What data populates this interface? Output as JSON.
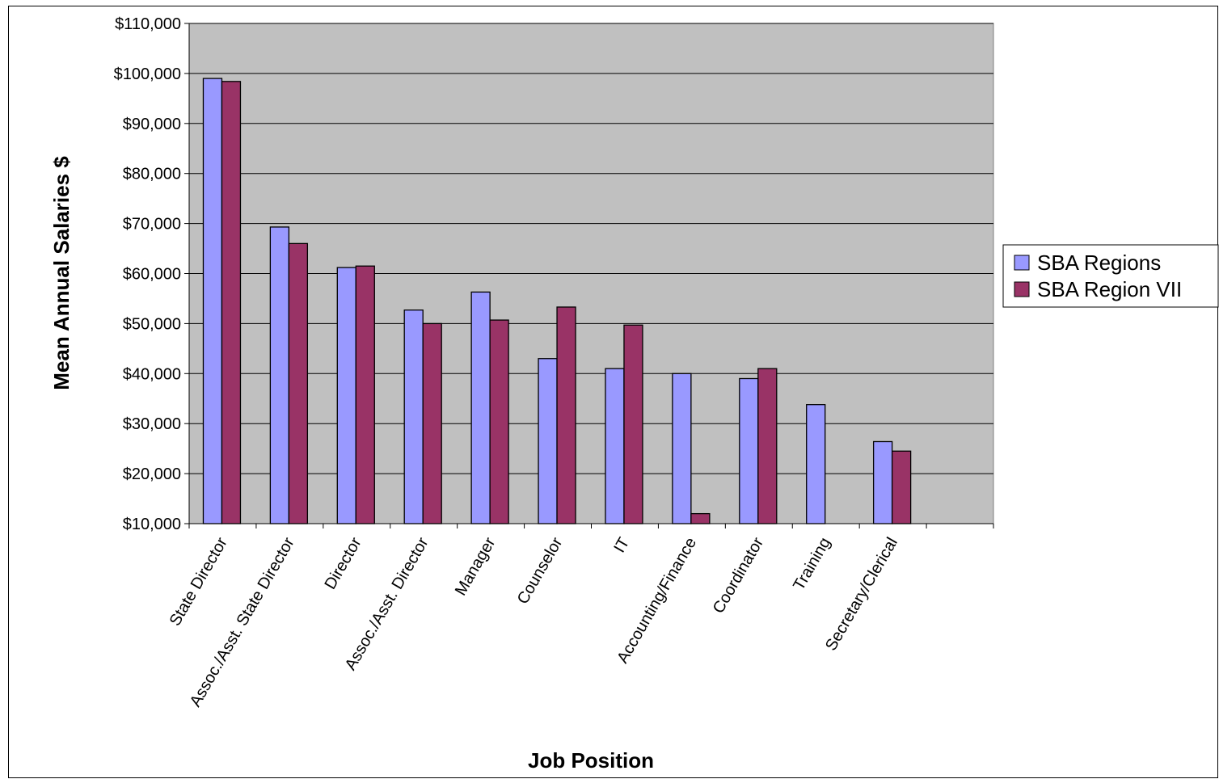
{
  "chart_data": {
    "type": "bar",
    "title": "",
    "xlabel": "Job Position",
    "ylabel": "Mean Annual Salaries $",
    "ylim": [
      10000,
      110000
    ],
    "ytick_step": 10000,
    "ytick_labels": [
      "$10,000",
      "$20,000",
      "$30,000",
      "$40,000",
      "$50,000",
      "$60,000",
      "$70,000",
      "$80,000",
      "$90,000",
      "$100,000",
      "$110,000"
    ],
    "categories": [
      "State Director",
      "Assoc./Asst. State Director",
      "Director",
      "Assoc./Asst. Director",
      "Manager",
      "Counselor",
      "IT",
      "Accounting/Finance",
      "Coordinator",
      "Training",
      "Secretary/Clerical",
      ""
    ],
    "series": [
      {
        "name": "SBA Regions",
        "color": "#9999ff",
        "values": [
          99000,
          69300,
          61200,
          52700,
          56300,
          43000,
          41000,
          40000,
          39000,
          33800,
          26400,
          null
        ]
      },
      {
        "name": "SBA Region VII",
        "color": "#993366",
        "values": [
          98400,
          66000,
          61500,
          50000,
          50700,
          53300,
          49700,
          12000,
          41000,
          null,
          24500,
          null
        ]
      }
    ],
    "grid": true,
    "plot_background": "#c0c0c0",
    "legend_position": "right"
  }
}
